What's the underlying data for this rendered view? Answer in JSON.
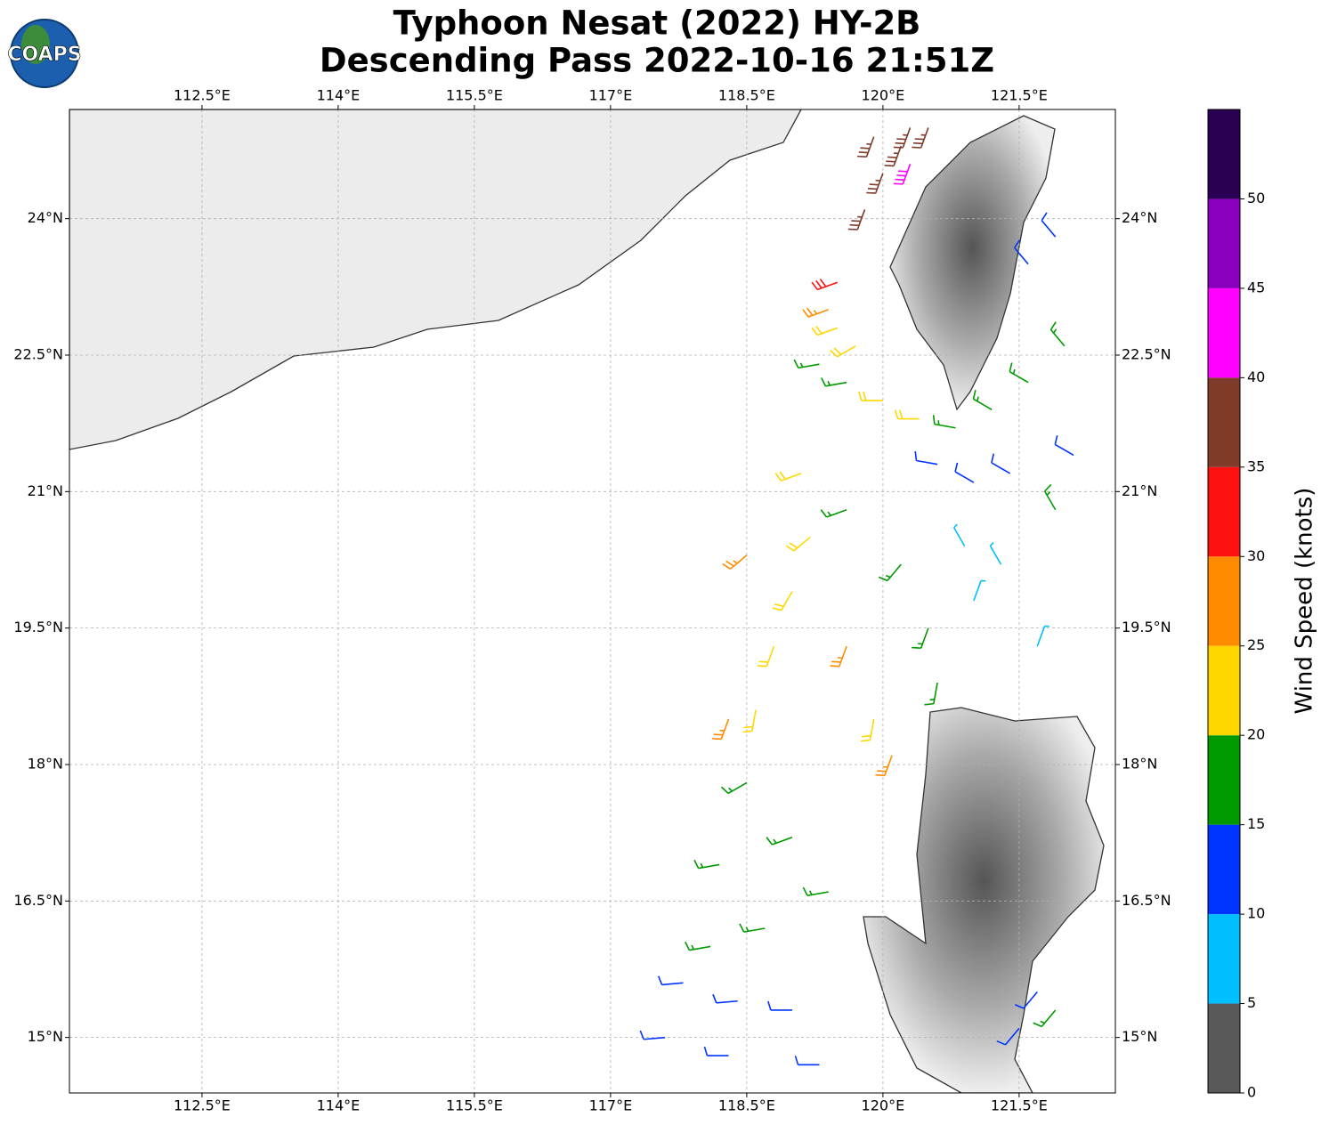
{
  "logo": "COAPS",
  "title": [
    "Typhoon Nesat (2022) HY-2B",
    "Descending Pass 2022-10-16 21:51Z"
  ],
  "map": {
    "xlim": [
      111.04,
      122.56
    ],
    "ylim": [
      14.39,
      25.2
    ],
    "xticks": [
      {
        "value": 112.5,
        "label": "112.5°E"
      },
      {
        "value": 114,
        "label": "114°E"
      },
      {
        "value": 115.5,
        "label": "115.5°E"
      },
      {
        "value": 117,
        "label": "117°E"
      },
      {
        "value": 118.5,
        "label": "118.5°E"
      },
      {
        "value": 120,
        "label": "120°E"
      },
      {
        "value": 121.5,
        "label": "121.5°E"
      }
    ],
    "yticks": [
      {
        "value": 24,
        "label": "24°N"
      },
      {
        "value": 22.5,
        "label": "22.5°N"
      },
      {
        "value": 21,
        "label": "21°N"
      },
      {
        "value": 19.5,
        "label": "19.5°N"
      },
      {
        "value": 18,
        "label": "18°N"
      },
      {
        "value": 16.5,
        "label": "16.5°N"
      },
      {
        "value": 15,
        "label": "15°N"
      }
    ],
    "grid": true
  },
  "colorbar": {
    "label": "Wind Speed (knots)",
    "lim": [
      0,
      55
    ],
    "ticks": [
      0,
      5,
      10,
      15,
      20,
      25,
      30,
      35,
      40,
      45,
      50
    ],
    "colors": [
      "#595959",
      "#00bfff",
      "#0033ff",
      "#009900",
      "#ffd700",
      "#ff8c00",
      "#ff1111",
      "#7f3a2a",
      "#ff00ff",
      "#8800bb",
      "#2a0055"
    ]
  },
  "wind_barbs": [
    [
      119.9,
      24.9,
      35,
      200
    ],
    [
      120.0,
      24.5,
      35,
      200
    ],
    [
      119.8,
      24.1,
      35,
      200
    ],
    [
      120.2,
      24.8,
      35,
      200
    ],
    [
      120.3,
      25.0,
      35,
      200
    ],
    [
      120.5,
      25.0,
      35,
      200
    ],
    [
      120.3,
      24.6,
      40,
      200
    ],
    [
      119.5,
      23.3,
      30,
      250
    ],
    [
      119.4,
      23.0,
      25,
      250
    ],
    [
      119.5,
      22.8,
      20,
      250
    ],
    [
      119.7,
      22.6,
      20,
      240
    ],
    [
      119.3,
      22.4,
      15,
      260
    ],
    [
      119.6,
      22.2,
      15,
      260
    ],
    [
      120.0,
      22.0,
      20,
      270
    ],
    [
      120.4,
      21.8,
      20,
      270
    ],
    [
      120.8,
      21.7,
      15,
      280
    ],
    [
      121.2,
      21.9,
      15,
      300
    ],
    [
      121.6,
      23.5,
      10,
      320
    ],
    [
      121.9,
      23.8,
      10,
      320
    ],
    [
      121.6,
      22.2,
      15,
      300
    ],
    [
      122.0,
      22.6,
      15,
      320
    ],
    [
      122.1,
      21.4,
      10,
      300
    ],
    [
      120.6,
      21.3,
      10,
      280
    ],
    [
      121.0,
      21.1,
      10,
      300
    ],
    [
      121.4,
      21.2,
      10,
      300
    ],
    [
      121.9,
      20.8,
      15,
      330
    ],
    [
      120.9,
      20.4,
      5,
      330
    ],
    [
      121.3,
      20.2,
      5,
      330
    ],
    [
      121.0,
      19.8,
      5,
      20
    ],
    [
      121.7,
      19.3,
      5,
      20
    ],
    [
      119.1,
      21.2,
      20,
      250
    ],
    [
      119.2,
      20.5,
      20,
      230
    ],
    [
      119.0,
      19.9,
      20,
      210
    ],
    [
      118.8,
      19.3,
      20,
      200
    ],
    [
      118.6,
      18.6,
      20,
      190
    ],
    [
      119.6,
      19.3,
      25,
      200
    ],
    [
      119.9,
      18.5,
      20,
      190
    ],
    [
      119.6,
      20.8,
      15,
      250
    ],
    [
      120.2,
      20.2,
      15,
      220
    ],
    [
      120.5,
      19.5,
      15,
      200
    ],
    [
      120.6,
      18.9,
      15,
      190
    ],
    [
      118.5,
      17.8,
      15,
      240
    ],
    [
      119.0,
      17.2,
      15,
      250
    ],
    [
      119.4,
      16.6,
      15,
      260
    ],
    [
      118.2,
      16.9,
      15,
      260
    ],
    [
      118.1,
      16.0,
      15,
      260
    ],
    [
      118.7,
      16.2,
      15,
      260
    ],
    [
      121.9,
      15.3,
      15,
      220
    ],
    [
      117.8,
      15.6,
      10,
      265
    ],
    [
      118.4,
      15.4,
      10,
      265
    ],
    [
      119.0,
      15.3,
      10,
      270
    ],
    [
      117.6,
      15.0,
      10,
      265
    ],
    [
      118.3,
      14.8,
      10,
      270
    ],
    [
      119.3,
      14.7,
      10,
      270
    ],
    [
      121.7,
      15.5,
      10,
      220
    ],
    [
      121.5,
      15.1,
      10,
      220
    ],
    [
      118.5,
      20.3,
      25,
      230
    ],
    [
      118.3,
      18.5,
      25,
      200
    ],
    [
      120.1,
      18.1,
      25,
      200
    ]
  ]
}
